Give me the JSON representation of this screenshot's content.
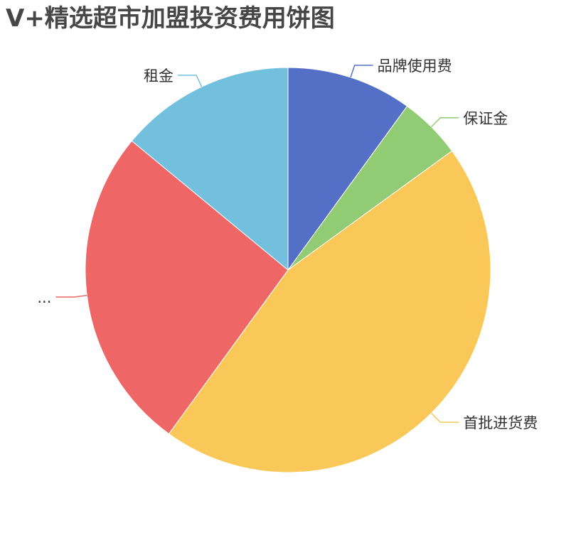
{
  "chart_data": {
    "type": "pie",
    "title": "V+精选超市加盟投资费用饼图",
    "slices": [
      {
        "label": "品牌使用费",
        "value": 10,
        "color": "#5470c6"
      },
      {
        "label": "保证金",
        "value": 5,
        "color": "#91cc75"
      },
      {
        "label": "首批进货费",
        "value": 45,
        "color": "#fac858"
      },
      {
        "label": "...",
        "value": 26,
        "color": "#ee6666"
      },
      {
        "label": "租金",
        "value": 14,
        "color": "#73c0de"
      }
    ],
    "legend": "none",
    "label_position": "outside"
  }
}
